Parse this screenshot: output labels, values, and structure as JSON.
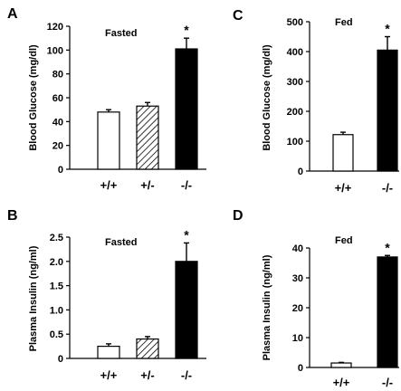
{
  "chart_data": [
    {
      "panel": "A",
      "type": "bar",
      "annotation": "Fasted",
      "ylabel": "Blood Glucose (mg/dl)",
      "ylim": [
        0,
        120
      ],
      "yticks": [
        "0",
        "20",
        "40",
        "60",
        "80",
        "100",
        "120"
      ],
      "categories": [
        "+/+",
        "+/-",
        "-/-"
      ],
      "values": [
        48,
        53,
        101
      ],
      "errors": [
        2,
        3,
        9
      ],
      "fills": [
        "white",
        "hatch",
        "black"
      ],
      "significance": [
        "",
        "",
        "*"
      ]
    },
    {
      "panel": "B",
      "type": "bar",
      "annotation": "Fasted",
      "ylabel": "Plasma Insulin (ng/ml)",
      "ylim": [
        0,
        2.5
      ],
      "yticks": [
        "0",
        "0.5",
        "1.0",
        "1.5",
        "2.0",
        "2.5"
      ],
      "categories": [
        "+/+",
        "+/-",
        "-/-"
      ],
      "values": [
        0.25,
        0.4,
        2.0
      ],
      "errors": [
        0.05,
        0.05,
        0.38
      ],
      "fills": [
        "white",
        "hatch",
        "black"
      ],
      "significance": [
        "",
        "",
        "*"
      ]
    },
    {
      "panel": "C",
      "type": "bar",
      "annotation": "Fed",
      "ylabel": "Blood Glucose (mg/dl)",
      "ylim": [
        0,
        500
      ],
      "yticks": [
        "0",
        "100",
        "200",
        "300",
        "400",
        "500"
      ],
      "categories": [
        "+/+",
        "-/-"
      ],
      "values": [
        122,
        405
      ],
      "errors": [
        8,
        45
      ],
      "fills": [
        "white",
        "black"
      ],
      "significance": [
        "",
        "*"
      ]
    },
    {
      "panel": "D",
      "type": "bar",
      "annotation": "Fed",
      "ylabel": "Plasma Insulin (ng/ml)",
      "ylim": [
        0,
        40
      ],
      "yticks": [
        "0",
        "10",
        "20",
        "30",
        "40"
      ],
      "categories": [
        "+/+",
        "-/-"
      ],
      "values": [
        1.5,
        37
      ],
      "errors": [
        0.2,
        0.5
      ],
      "fills": [
        "white",
        "black"
      ],
      "significance": [
        "",
        "*"
      ]
    }
  ]
}
